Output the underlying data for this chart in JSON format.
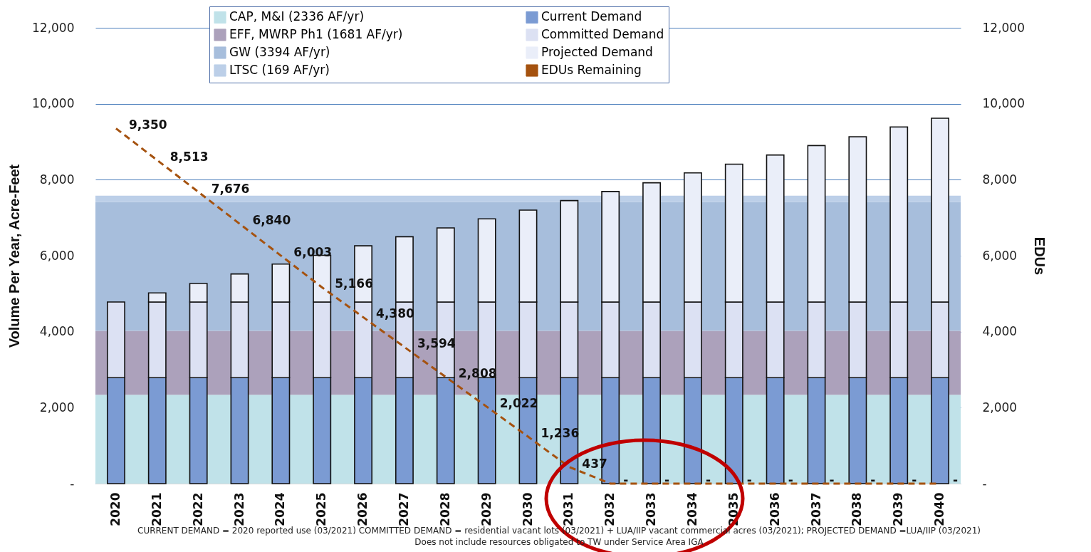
{
  "chart_data": {
    "type": "bar",
    "stacked": true,
    "categories": [
      "2020",
      "2021",
      "2022",
      "2023",
      "2024",
      "2025",
      "2026",
      "2027",
      "2028",
      "2029",
      "2030",
      "2031",
      "2032",
      "2033",
      "2034",
      "2035",
      "2036",
      "2037",
      "2038",
      "2039",
      "2040"
    ],
    "series": [
      {
        "name": "Current Demand",
        "color": "#7b9bd3",
        "values": [
          2790,
          2790,
          2790,
          2790,
          2790,
          2790,
          2790,
          2790,
          2790,
          2790,
          2790,
          2790,
          2790,
          2790,
          2790,
          2790,
          2790,
          2790,
          2790,
          2790,
          2790
        ]
      },
      {
        "name": "Committed Demand",
        "color": "#dce1f3",
        "values": [
          1990,
          1990,
          1990,
          1990,
          1990,
          1990,
          1990,
          1990,
          1990,
          1990,
          1990,
          1990,
          1990,
          1990,
          1990,
          1990,
          1990,
          1990,
          1990,
          1990,
          1990
        ]
      },
      {
        "name": "Projected Demand",
        "color": "#eaeef9",
        "values": [
          null,
          240,
          490,
          740,
          1000,
          1230,
          1480,
          1720,
          1950,
          2190,
          2420,
          2670,
          2910,
          3140,
          3400,
          3630,
          3870,
          4120,
          4350,
          4610,
          4840
        ]
      },
      {
        "name": "EDUs Remaining",
        "type": "line",
        "axis": "y2",
        "color": "#a5520f",
        "line_style": "dashed",
        "values": [
          9350,
          8513,
          7676,
          6840,
          6003,
          5166,
          4380,
          3594,
          2808,
          2022,
          1236,
          437,
          0,
          0,
          0,
          0,
          0,
          0,
          0,
          0,
          0
        ],
        "value_labels": [
          "9,350",
          "8,513",
          "7,676",
          "6,840",
          "6,003",
          "5,166",
          "4,380",
          "3,594",
          "2,808",
          "2,022",
          "1,236",
          "437",
          "-",
          "-",
          "-",
          "-",
          "-",
          "-",
          "-",
          "-",
          "-"
        ]
      }
    ],
    "bands": [
      {
        "axis": "y",
        "from": 0,
        "to": 2340,
        "label": "CAP, M&I (2336 AF/yr)",
        "color": "#c0e2e9"
      },
      {
        "axis": "y",
        "from": 2340,
        "to": 4020,
        "label": "EFF, MWRP Ph1 (1681 AF/yr)",
        "color": "#aca1bb"
      },
      {
        "axis": "y",
        "from": 4020,
        "to": 7410,
        "label": "GW (3394 AF/yr)",
        "color": "#a7bedc"
      },
      {
        "axis": "y",
        "from": 7410,
        "to": 7580,
        "label": "LTSC (169 AF/yr)",
        "color": "#bccfe8"
      }
    ],
    "ylabel": "Volume Per Year, Acre-Feet",
    "y2label": "EDUs",
    "ylim": [
      0,
      12000
    ],
    "yticks": [
      {
        "value": 0,
        "label": "-"
      },
      {
        "value": 2000,
        "label": "2,000"
      },
      {
        "value": 4000,
        "label": "4,000"
      },
      {
        "value": 6000,
        "label": "6,000"
      },
      {
        "value": 8000,
        "label": "8,000"
      },
      {
        "value": 10000,
        "label": "10,000"
      },
      {
        "value": 12000,
        "label": "12,000"
      }
    ],
    "y2lim": [
      0,
      12000
    ],
    "y2ticks": [
      {
        "value": 0,
        "label": "-"
      },
      {
        "value": 2000,
        "label": "2,000"
      },
      {
        "value": 4000,
        "label": "4,000"
      },
      {
        "value": 6000,
        "label": "6,000"
      },
      {
        "value": 8000,
        "label": "8,000"
      },
      {
        "value": 10000,
        "label": "10,000"
      },
      {
        "value": 12000,
        "label": "12,000"
      }
    ],
    "grid": "y",
    "legend": "top",
    "annotations": [
      "CURRENT DEMAND = 2020 reported use (03/2021) COMMITTED DEMAND = residential vacant lots (03/2021) + LUA/IIP vacant commercial acres (03/2021); PROJECTED DEMAND =LUA/IIP (03/2021)",
      "Does not include resources obligated to TW under Service Area IGA"
    ]
  }
}
